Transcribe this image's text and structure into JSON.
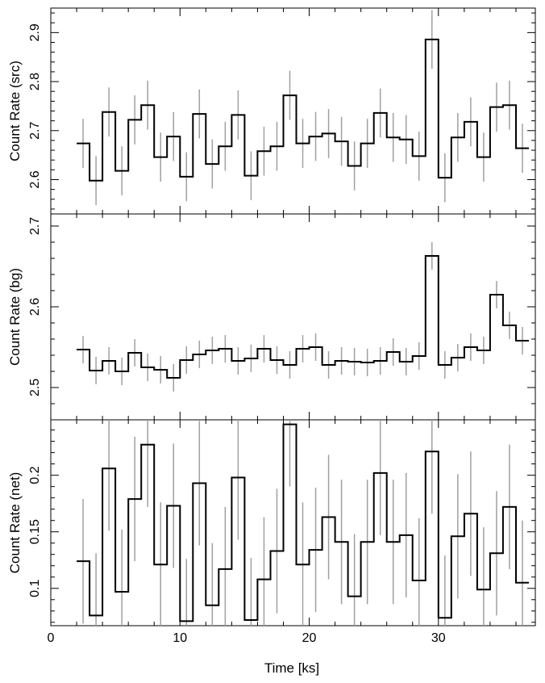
{
  "chart_data": [
    {
      "type": "line",
      "ylabel": "Count Rate (src)",
      "ylim": [
        2.53,
        2.95
      ],
      "yticks": [
        2.6,
        2.7,
        2.8,
        2.9
      ],
      "ytick_labels": [
        "2.6",
        "2.7",
        "2.8",
        "2.9"
      ],
      "series": [
        {
          "x": [
            2,
            3,
            4,
            5,
            6,
            7,
            8,
            9,
            10,
            11,
            12,
            13,
            14,
            15,
            16,
            17,
            18,
            19,
            20,
            21,
            22,
            23,
            24,
            25,
            26,
            27,
            28,
            29,
            30,
            31,
            32,
            33,
            34,
            35,
            36
          ],
          "values": [
            2.674,
            2.598,
            2.738,
            2.618,
            2.722,
            2.752,
            2.646,
            2.688,
            2.606,
            2.734,
            2.632,
            2.668,
            2.732,
            2.608,
            2.658,
            2.668,
            2.772,
            2.674,
            2.688,
            2.694,
            2.678,
            2.628,
            2.674,
            2.736,
            2.686,
            2.682,
            2.648,
            2.886,
            2.604,
            2.686,
            2.718,
            2.646,
            2.748,
            2.752,
            2.664
          ],
          "errors": [
            0.05,
            0.05,
            0.05,
            0.05,
            0.05,
            0.05,
            0.05,
            0.05,
            0.05,
            0.05,
            0.05,
            0.05,
            0.05,
            0.05,
            0.05,
            0.05,
            0.05,
            0.05,
            0.05,
            0.05,
            0.05,
            0.05,
            0.05,
            0.05,
            0.05,
            0.05,
            0.05,
            0.06,
            0.05,
            0.05,
            0.05,
            0.05,
            0.05,
            0.05,
            0.05
          ]
        }
      ]
    },
    {
      "type": "line",
      "ylabel": "Count Rate (bg)",
      "ylim": [
        2.46,
        2.715
      ],
      "yticks": [
        2.5,
        2.6,
        2.7
      ],
      "ytick_labels": [
        "2.5",
        "2.6",
        "2.7"
      ],
      "series": [
        {
          "x": [
            2,
            3,
            4,
            5,
            6,
            7,
            8,
            9,
            10,
            11,
            12,
            13,
            14,
            15,
            16,
            17,
            18,
            19,
            20,
            21,
            22,
            23,
            24,
            25,
            26,
            27,
            28,
            29,
            30,
            31,
            32,
            33,
            34,
            35,
            36
          ],
          "values": [
            2.547,
            2.521,
            2.533,
            2.52,
            2.543,
            2.525,
            2.522,
            2.512,
            2.534,
            2.541,
            2.546,
            2.548,
            2.533,
            2.536,
            2.548,
            2.534,
            2.528,
            2.548,
            2.55,
            2.528,
            2.533,
            2.532,
            2.531,
            2.533,
            2.544,
            2.532,
            2.539,
            2.663,
            2.528,
            2.537,
            2.55,
            2.546,
            2.615,
            2.577,
            2.558
          ],
          "errors": [
            0.017,
            0.017,
            0.017,
            0.017,
            0.017,
            0.017,
            0.017,
            0.017,
            0.017,
            0.017,
            0.017,
            0.017,
            0.017,
            0.017,
            0.017,
            0.017,
            0.017,
            0.017,
            0.017,
            0.017,
            0.017,
            0.017,
            0.017,
            0.017,
            0.017,
            0.017,
            0.017,
            0.017,
            0.017,
            0.017,
            0.017,
            0.017,
            0.017,
            0.017,
            0.017
          ]
        }
      ]
    },
    {
      "type": "line",
      "ylabel": "Count Rate (net)",
      "xlabel": "Time [ks]",
      "xlim": [
        0,
        37.5
      ],
      "xticks": [
        0,
        10,
        20,
        30
      ],
      "xtick_labels": [
        "0",
        "10",
        "20",
        "30"
      ],
      "ylim": [
        0.067,
        0.249
      ],
      "yticks": [
        0.1,
        0.15,
        0.2
      ],
      "ytick_labels": [
        "0.1",
        "0.15",
        "0.2"
      ],
      "series": [
        {
          "x": [
            2,
            3,
            4,
            5,
            6,
            7,
            8,
            9,
            10,
            11,
            12,
            13,
            14,
            15,
            16,
            17,
            18,
            19,
            20,
            21,
            22,
            23,
            24,
            25,
            26,
            27,
            28,
            29,
            30,
            31,
            32,
            33,
            34,
            35,
            36
          ],
          "values": [
            0.124,
            0.076,
            0.206,
            0.097,
            0.179,
            0.227,
            0.121,
            0.173,
            0.071,
            0.193,
            0.085,
            0.117,
            0.198,
            0.072,
            0.108,
            0.133,
            0.245,
            0.121,
            0.134,
            0.163,
            0.141,
            0.093,
            0.141,
            0.202,
            0.141,
            0.147,
            0.107,
            0.221,
            0.074,
            0.146,
            0.166,
            0.099,
            0.131,
            0.172,
            0.105
          ],
          "errors": [
            0.055,
            0.055,
            0.055,
            0.055,
            0.055,
            0.055,
            0.055,
            0.055,
            0.055,
            0.055,
            0.055,
            0.055,
            0.055,
            0.055,
            0.055,
            0.055,
            0.055,
            0.055,
            0.055,
            0.055,
            0.055,
            0.055,
            0.055,
            0.055,
            0.055,
            0.055,
            0.055,
            0.055,
            0.055,
            0.055,
            0.055,
            0.055,
            0.055,
            0.055,
            0.055
          ]
        }
      ]
    }
  ],
  "colors": {
    "step_line": "#000000",
    "error_bar": "#a0a0a0",
    "axis": "#000000"
  }
}
